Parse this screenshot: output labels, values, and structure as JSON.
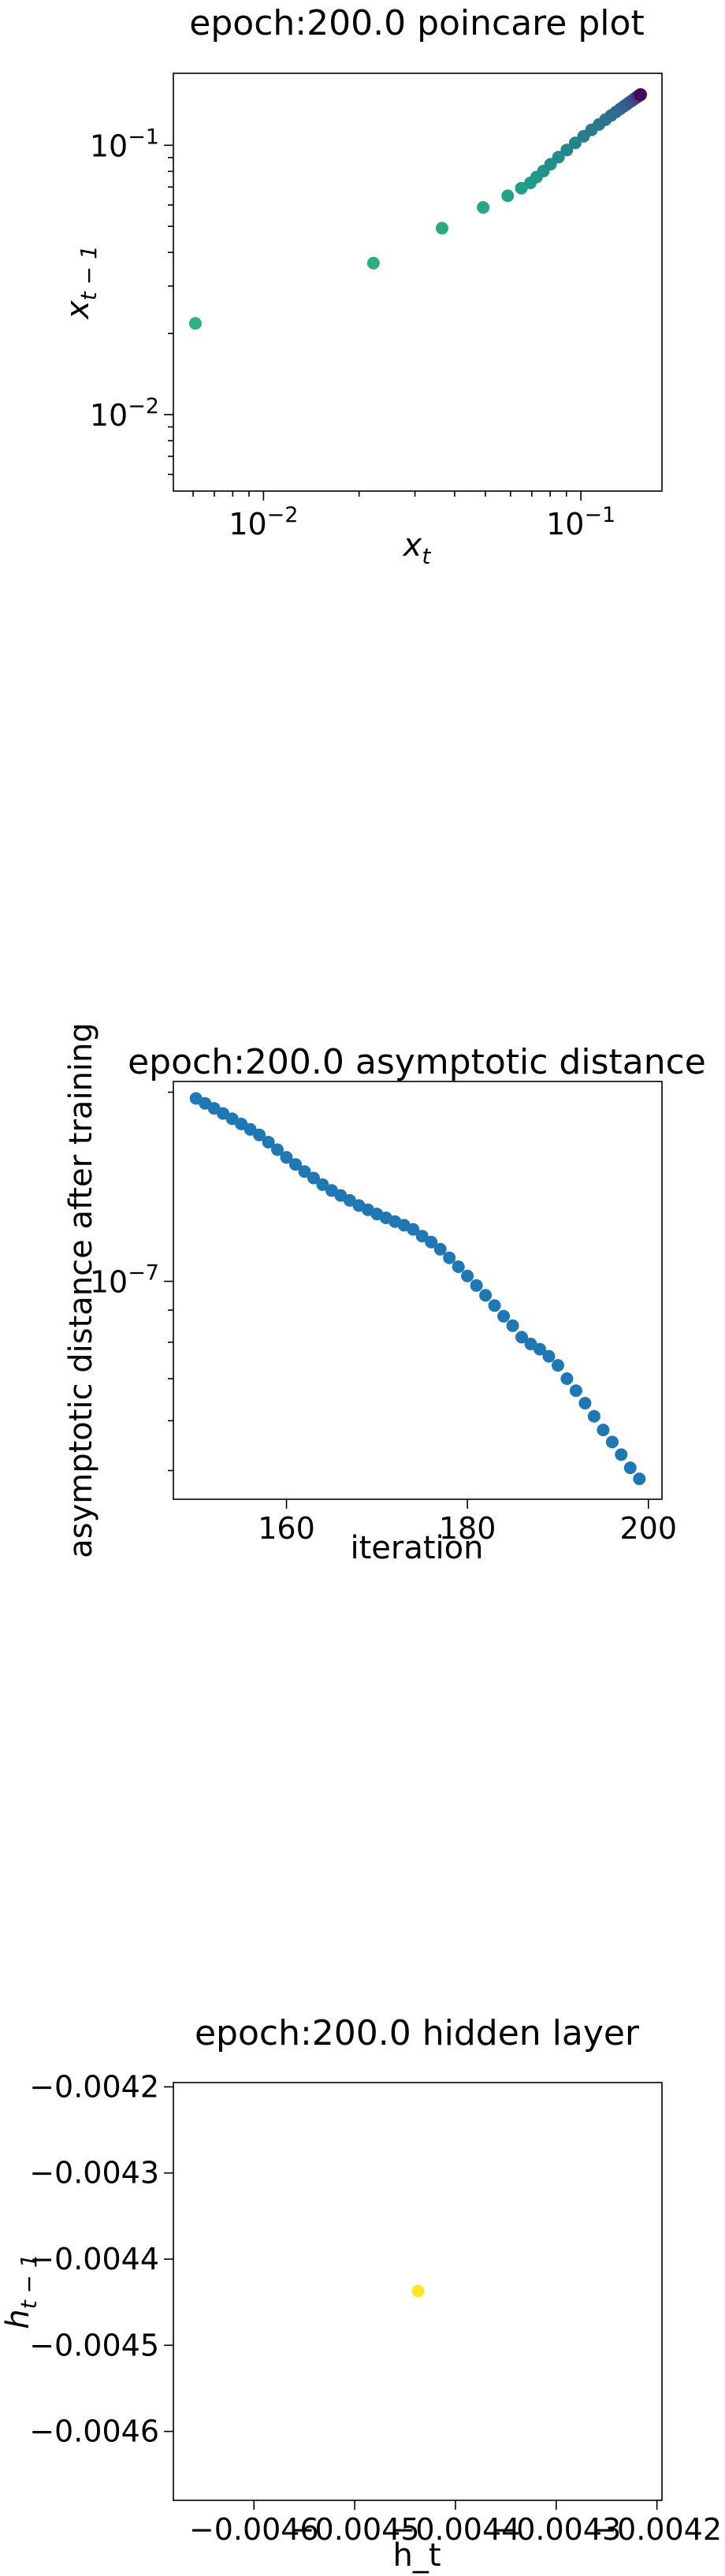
{
  "chart_data": [
    {
      "type": "scatter",
      "title": "epoch:200.0 poincare plot",
      "xlabel": "x_t",
      "ylabel": "x_{t-1}",
      "xscale": "log",
      "yscale": "log",
      "xlim": [
        0.0052,
        0.18
      ],
      "ylim": [
        0.0052,
        0.185
      ],
      "xticks": [
        {
          "value": 0.01,
          "base": "10",
          "exp": "−2"
        },
        {
          "value": 0.1,
          "base": "10",
          "exp": "−1"
        }
      ],
      "yticks": [
        {
          "value": 0.01,
          "base": "10",
          "exp": "−2"
        },
        {
          "value": 0.1,
          "base": "10",
          "exp": "−1"
        }
      ],
      "colormap": "viridis",
      "grid": false,
      "points": [
        {
          "x": 0.0061,
          "y": 0.0218
        },
        {
          "x": 0.0222,
          "y": 0.0365
        },
        {
          "x": 0.0365,
          "y": 0.0492
        },
        {
          "x": 0.0492,
          "y": 0.0588
        },
        {
          "x": 0.0588,
          "y": 0.0649
        },
        {
          "x": 0.0649,
          "y": 0.0693
        },
        {
          "x": 0.0693,
          "y": 0.0725
        },
        {
          "x": 0.0725,
          "y": 0.0762
        },
        {
          "x": 0.0762,
          "y": 0.0802
        },
        {
          "x": 0.0802,
          "y": 0.085
        },
        {
          "x": 0.085,
          "y": 0.0903
        },
        {
          "x": 0.0903,
          "y": 0.096
        },
        {
          "x": 0.096,
          "y": 0.102
        },
        {
          "x": 0.102,
          "y": 0.108
        },
        {
          "x": 0.108,
          "y": 0.114
        },
        {
          "x": 0.114,
          "y": 0.1195
        },
        {
          "x": 0.1195,
          "y": 0.1245
        },
        {
          "x": 0.1245,
          "y": 0.129
        },
        {
          "x": 0.129,
          "y": 0.133
        },
        {
          "x": 0.133,
          "y": 0.1365
        },
        {
          "x": 0.1365,
          "y": 0.1395
        },
        {
          "x": 0.1395,
          "y": 0.142
        },
        {
          "x": 0.142,
          "y": 0.1442
        },
        {
          "x": 0.1442,
          "y": 0.146
        },
        {
          "x": 0.146,
          "y": 0.1475
        },
        {
          "x": 0.1475,
          "y": 0.1488
        },
        {
          "x": 0.1488,
          "y": 0.1498
        },
        {
          "x": 0.1498,
          "y": 0.1507
        },
        {
          "x": 0.1507,
          "y": 0.1514
        },
        {
          "x": 0.1514,
          "y": 0.152
        },
        {
          "x": 0.152,
          "y": 0.1525
        },
        {
          "x": 0.1525,
          "y": 0.1529
        },
        {
          "x": 0.1529,
          "y": 0.1532
        },
        {
          "x": 0.1532,
          "y": 0.1535
        },
        {
          "x": 0.1535,
          "y": 0.1537
        },
        {
          "x": 0.1537,
          "y": 0.1539
        },
        {
          "x": 0.1539,
          "y": 0.154
        },
        {
          "x": 0.154,
          "y": 0.1541
        },
        {
          "x": 0.1541,
          "y": 0.1542
        },
        {
          "x": 0.1542,
          "y": 0.1543
        }
      ]
    },
    {
      "type": "scatter",
      "title": "epoch:200.0 asymptotic distance",
      "xlabel": "iteration",
      "ylabel": "asymptotic distance after training",
      "yscale": "log",
      "xlim": [
        147.5,
        201.5
      ],
      "ylim": [
        4.5e-08,
        2.08e-07
      ],
      "xticks": [
        160,
        180,
        200
      ],
      "yticks": [
        {
          "value": 1e-07,
          "base": "10",
          "exp": "−7"
        }
      ],
      "color": "#1f77b4",
      "grid": false,
      "x": [
        150,
        151,
        152,
        153,
        154,
        155,
        156,
        157,
        158,
        159,
        160,
        161,
        162,
        163,
        164,
        165,
        166,
        167,
        168,
        169,
        170,
        171,
        172,
        173,
        174,
        175,
        176,
        177,
        178,
        179,
        180,
        181,
        182,
        183,
        184,
        185,
        186,
        187,
        188,
        189,
        190,
        191,
        192,
        193,
        194,
        195,
        196,
        197,
        198,
        199
      ],
      "y": [
        1.955e-07,
        1.92e-07,
        1.885e-07,
        1.85e-07,
        1.815e-07,
        1.78e-07,
        1.745e-07,
        1.71e-07,
        1.665e-07,
        1.62e-07,
        1.575e-07,
        1.535e-07,
        1.495e-07,
        1.46e-07,
        1.425e-07,
        1.395e-07,
        1.37e-07,
        1.345e-07,
        1.32e-07,
        1.3e-07,
        1.28e-07,
        1.262e-07,
        1.245e-07,
        1.228e-07,
        1.21e-07,
        1.18e-07,
        1.155e-07,
        1.125e-07,
        1.09e-07,
        1.055e-07,
        1.02e-07,
        9.85e-08,
        9.5e-08,
        9.15e-08,
        8.8e-08,
        8.5e-08,
        8.15e-08,
        7.95e-08,
        7.8e-08,
        7.6e-08,
        7.35e-08,
        7e-08,
        6.7e-08,
        6.4e-08,
        6.1e-08,
        5.8e-08,
        5.55e-08,
        5.3e-08,
        5.05e-08,
        4.85e-08
      ]
    },
    {
      "type": "scatter",
      "title": "epoch:200.0 hidden layer",
      "xlabel": "h_t",
      "ylabel": "h_{t-1}",
      "xlim": [
        -0.00468,
        -0.004195
      ],
      "ylim": [
        -0.00468,
        -0.004195
      ],
      "xticks": [
        {
          "value": -0.0046,
          "label": "−0.0046"
        },
        {
          "value": -0.0045,
          "label": "−0.0045"
        },
        {
          "value": -0.0044,
          "label": "−0.0044"
        },
        {
          "value": -0.0043,
          "label": "−0.0043"
        },
        {
          "value": -0.0042,
          "label": "−0.0042"
        }
      ],
      "yticks": [
        {
          "value": -0.0046,
          "label": "−0.0046"
        },
        {
          "value": -0.0045,
          "label": "−0.0045"
        },
        {
          "value": -0.0044,
          "label": "−0.0044"
        },
        {
          "value": -0.0043,
          "label": "−0.0043"
        },
        {
          "value": -0.0042,
          "label": "−0.0042"
        }
      ],
      "color": "#fde725",
      "grid": false,
      "points": [
        {
          "x": -0.004437,
          "y": -0.004437
        }
      ]
    }
  ]
}
